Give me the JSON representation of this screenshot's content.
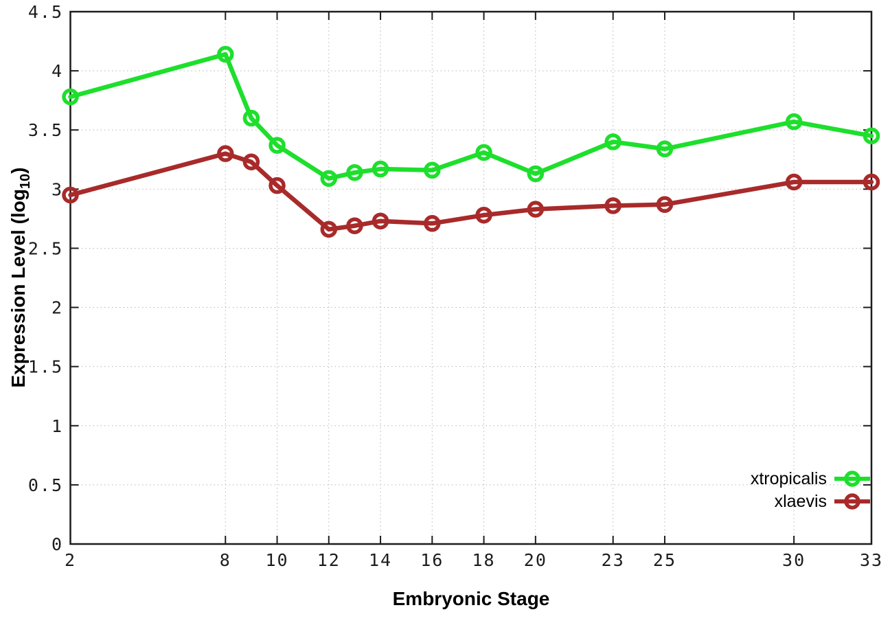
{
  "chart_data": {
    "type": "line",
    "title": "",
    "xlabel": "Embryonic Stage",
    "ylabel": "Expression Level (log10)",
    "ylabel_parts": {
      "pre": "Expression Level (log",
      "sub": "10",
      "post": ")"
    },
    "xlim": [
      2,
      33
    ],
    "ylim": [
      0,
      4.5
    ],
    "xticks": [
      2,
      8,
      10,
      12,
      14,
      16,
      18,
      20,
      23,
      25,
      30,
      33
    ],
    "yticks": [
      0,
      0.5,
      1,
      1.5,
      2,
      2.5,
      3,
      3.5,
      4,
      4.5
    ],
    "grid": true,
    "marker": "open-circle",
    "legend_position": "inside-bottom-right",
    "x": [
      2,
      8,
      9,
      10,
      12,
      13,
      14,
      16,
      18,
      20,
      23,
      25,
      30,
      33
    ],
    "series": [
      {
        "name": "xtropicalis",
        "color": "#1ddf2c",
        "values": [
          3.78,
          4.14,
          3.6,
          3.37,
          3.09,
          3.14,
          3.17,
          3.16,
          3.31,
          3.13,
          3.4,
          3.34,
          3.57,
          3.45
        ]
      },
      {
        "name": "xlaevis",
        "color": "#a82a2a",
        "values": [
          2.95,
          3.3,
          3.23,
          3.03,
          2.66,
          2.69,
          2.73,
          2.71,
          2.78,
          2.83,
          2.86,
          2.87,
          3.06,
          3.06
        ]
      }
    ],
    "colors": {
      "axis": "#1c1c1c",
      "grid": "#b5b5b5",
      "background": "#ffffff"
    }
  }
}
